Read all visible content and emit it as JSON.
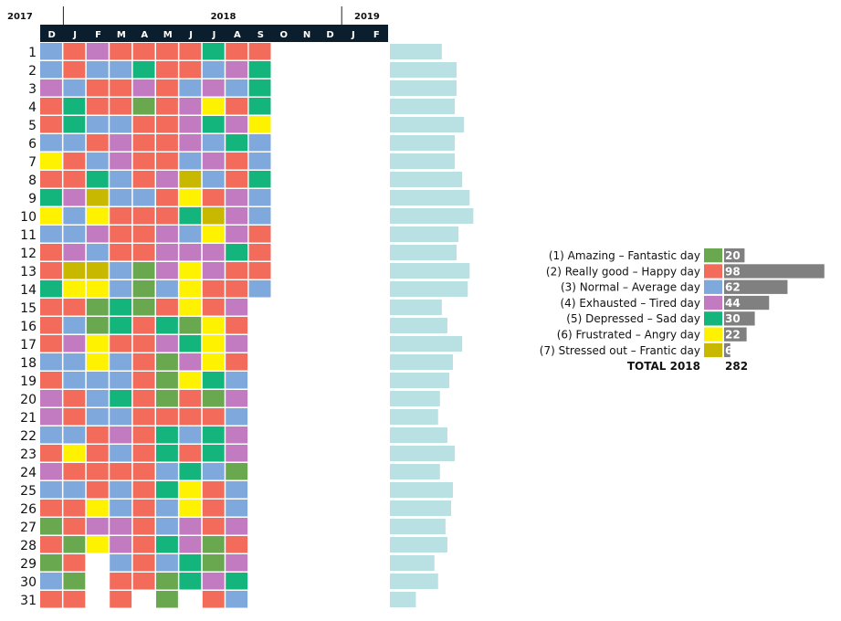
{
  "chart_data": {
    "type": "heatmap",
    "years": [
      "2017",
      "2018",
      "2019"
    ],
    "months": [
      "D",
      "J",
      "F",
      "M",
      "A",
      "M",
      "J",
      "J",
      "A",
      "S",
      "O",
      "N",
      "D",
      "J",
      "F"
    ],
    "days": [
      "1",
      "2",
      "3",
      "4",
      "5",
      "6",
      "7",
      "8",
      "9",
      "10",
      "11",
      "12",
      "13",
      "14",
      "15",
      "16",
      "17",
      "18",
      "19",
      "20",
      "21",
      "22",
      "23",
      "24",
      "25",
      "26",
      "27",
      "28",
      "29",
      "30",
      "31"
    ],
    "palette": {
      "1": "#6aa84f",
      "2": "#f26b5b",
      "3": "#7fa8dc",
      "4": "#c27bc0",
      "5": "#13b57c",
      "6": "#fff200",
      "7": "#c9b800"
    },
    "moods": [
      [
        3,
        2,
        4,
        2,
        2,
        2,
        2,
        5,
        2,
        2
      ],
      [
        3,
        2,
        3,
        3,
        5,
        2,
        2,
        3,
        4,
        5
      ],
      [
        4,
        3,
        2,
        2,
        4,
        2,
        3,
        4,
        3,
        5
      ],
      [
        2,
        5,
        2,
        2,
        1,
        2,
        4,
        6,
        2,
        5
      ],
      [
        2,
        5,
        3,
        3,
        2,
        2,
        4,
        5,
        4,
        6
      ],
      [
        3,
        3,
        2,
        4,
        2,
        2,
        4,
        3,
        5,
        3
      ],
      [
        6,
        2,
        3,
        4,
        2,
        2,
        3,
        4,
        2,
        3
      ],
      [
        2,
        2,
        5,
        3,
        2,
        4,
        7,
        3,
        2,
        5
      ],
      [
        5,
        4,
        7,
        3,
        3,
        2,
        6,
        2,
        4,
        3
      ],
      [
        6,
        3,
        6,
        2,
        2,
        2,
        5,
        7,
        4,
        3
      ],
      [
        3,
        3,
        4,
        2,
        2,
        4,
        3,
        6,
        4,
        2
      ],
      [
        2,
        4,
        3,
        2,
        2,
        4,
        4,
        4,
        5,
        2
      ],
      [
        2,
        7,
        7,
        3,
        1,
        4,
        6,
        4,
        2,
        2
      ],
      [
        5,
        6,
        6,
        3,
        1,
        3,
        6,
        2,
        2,
        3
      ],
      [
        2,
        2,
        1,
        5,
        1,
        2,
        6,
        2,
        4,
        0
      ],
      [
        2,
        3,
        1,
        5,
        2,
        5,
        1,
        6,
        2,
        0
      ],
      [
        2,
        4,
        6,
        2,
        2,
        4,
        5,
        6,
        4,
        0
      ],
      [
        3,
        3,
        6,
        3,
        2,
        1,
        4,
        6,
        2,
        0
      ],
      [
        2,
        3,
        3,
        3,
        2,
        1,
        6,
        5,
        3,
        0
      ],
      [
        4,
        2,
        3,
        5,
        2,
        1,
        2,
        1,
        4,
        0
      ],
      [
        4,
        2,
        3,
        3,
        2,
        2,
        2,
        2,
        3,
        0
      ],
      [
        3,
        3,
        2,
        4,
        2,
        5,
        3,
        5,
        4,
        0
      ],
      [
        2,
        6,
        2,
        3,
        2,
        5,
        2,
        5,
        4,
        0
      ],
      [
        4,
        2,
        2,
        2,
        2,
        3,
        5,
        3,
        1,
        0
      ],
      [
        3,
        3,
        2,
        3,
        2,
        5,
        6,
        2,
        3,
        0
      ],
      [
        2,
        2,
        6,
        3,
        2,
        3,
        6,
        2,
        3,
        0
      ],
      [
        1,
        2,
        4,
        4,
        2,
        3,
        4,
        2,
        4,
        0
      ],
      [
        2,
        1,
        6,
        4,
        2,
        5,
        4,
        1,
        2,
        0
      ],
      [
        1,
        2,
        0,
        3,
        2,
        3,
        5,
        1,
        4,
        0
      ],
      [
        3,
        1,
        0,
        2,
        2,
        1,
        5,
        4,
        5,
        0
      ],
      [
        2,
        2,
        0,
        2,
        0,
        1,
        0,
        2,
        3,
        0
      ]
    ],
    "daily_bar_lengths_relative": [
      28,
      36,
      36,
      35,
      40,
      35,
      35,
      39,
      43,
      45,
      37,
      36,
      43,
      42,
      28,
      31,
      39,
      34,
      32,
      27,
      26,
      31,
      35,
      27,
      34,
      33,
      30,
      31,
      24,
      26,
      14
    ],
    "legend": [
      {
        "label": "(1) Amazing – Fantastic day",
        "key": "1",
        "count": 20
      },
      {
        "label": "(2) Really good – Happy day",
        "key": "2",
        "count": 98
      },
      {
        "label": "(3) Normal – Average day",
        "key": "3",
        "count": 62
      },
      {
        "label": "(4) Exhausted – Tired day",
        "key": "4",
        "count": 44
      },
      {
        "label": "(5) Depressed – Sad day",
        "key": "5",
        "count": 30
      },
      {
        "label": "(6) Frustrated – Angry day",
        "key": "6",
        "count": 22
      },
      {
        "label": "(7) Stressed out – Frantic day",
        "key": "7",
        "count": 6
      }
    ],
    "total_label": "TOTAL 2018",
    "total_value": 282,
    "header_color": "#0b1e2d",
    "daily_bar_color": "#b9e0e2",
    "count_bar_color": "#808080"
  }
}
